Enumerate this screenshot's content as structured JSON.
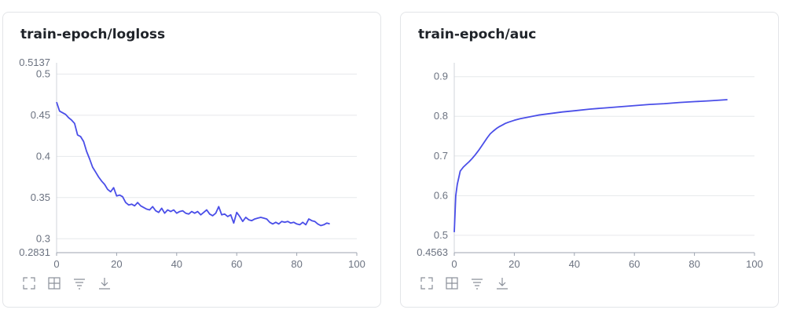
{
  "cards": [
    {
      "title": "train-epoch/logloss",
      "icons": [
        "expand-icon",
        "fit-view-icon",
        "filter-icon",
        "download-icon"
      ]
    },
    {
      "title": "train-epoch/auc",
      "icons": [
        "expand-icon",
        "fit-view-icon",
        "filter-icon",
        "download-icon"
      ]
    }
  ],
  "chart_data": [
    {
      "type": "line",
      "title": "train-epoch/logloss",
      "xlabel": "",
      "ylabel": "",
      "xlim": [
        0,
        100
      ],
      "ylim": [
        0.2831,
        0.5137
      ],
      "xticks": [
        "0",
        "20",
        "40",
        "60",
        "80",
        "100"
      ],
      "yticks": [
        "0.3",
        "0.35",
        "0.4",
        "0.45",
        "0.5"
      ],
      "ytick_values": [
        0.3,
        0.35,
        0.4,
        0.45,
        0.5
      ],
      "ylim_labels": [
        "0.2831",
        "0.5137"
      ],
      "grid": true,
      "line_color": "#4a4ee8",
      "series": [
        {
          "x": [
            0,
            1,
            2,
            3,
            4,
            5,
            6,
            7,
            8,
            9,
            10,
            11,
            12,
            13,
            14,
            15,
            16,
            17,
            18,
            19,
            20,
            21,
            22,
            23,
            24,
            25,
            26,
            27,
            28,
            29,
            30,
            31,
            32,
            33,
            34,
            35,
            36,
            37,
            38,
            39,
            40,
            41,
            42,
            43,
            44,
            45,
            46,
            47,
            48,
            49,
            50,
            51,
            52,
            53,
            54,
            55,
            56,
            57,
            58,
            59,
            60,
            61,
            62,
            63,
            64,
            65,
            66,
            67,
            68,
            69,
            70,
            71,
            72,
            73,
            74,
            75,
            76,
            77,
            78,
            79,
            80,
            81,
            82,
            83,
            84,
            85,
            86,
            87,
            88,
            89,
            90,
            91
          ],
          "values": [
            0.466,
            0.455,
            0.453,
            0.451,
            0.447,
            0.444,
            0.44,
            0.426,
            0.424,
            0.418,
            0.406,
            0.397,
            0.387,
            0.381,
            0.375,
            0.37,
            0.366,
            0.36,
            0.357,
            0.362,
            0.352,
            0.353,
            0.351,
            0.344,
            0.341,
            0.342,
            0.34,
            0.344,
            0.34,
            0.338,
            0.336,
            0.335,
            0.339,
            0.334,
            0.332,
            0.337,
            0.331,
            0.335,
            0.333,
            0.335,
            0.331,
            0.333,
            0.334,
            0.331,
            0.33,
            0.333,
            0.331,
            0.333,
            0.329,
            0.332,
            0.335,
            0.33,
            0.328,
            0.331,
            0.339,
            0.329,
            0.33,
            0.327,
            0.329,
            0.319,
            0.332,
            0.327,
            0.321,
            0.326,
            0.323,
            0.322,
            0.324,
            0.325,
            0.326,
            0.325,
            0.324,
            0.32,
            0.318,
            0.32,
            0.318,
            0.321,
            0.32,
            0.321,
            0.319,
            0.32,
            0.318,
            0.317,
            0.32,
            0.317,
            0.324,
            0.322,
            0.321,
            0.318,
            0.316,
            0.317,
            0.319,
            0.318
          ]
        }
      ]
    },
    {
      "type": "line",
      "title": "train-epoch/auc",
      "xlabel": "",
      "ylabel": "",
      "xlim": [
        0,
        100
      ],
      "ylim": [
        0.4563,
        0.935
      ],
      "xticks": [
        "0",
        "20",
        "40",
        "60",
        "80",
        "100"
      ],
      "yticks": [
        "0.5",
        "0.6",
        "0.7",
        "0.8",
        "0.9"
      ],
      "ytick_values": [
        0.5,
        0.6,
        0.7,
        0.8,
        0.9
      ],
      "ylim_labels": [
        "0.4563"
      ],
      "grid": true,
      "line_color": "#4a4ee8",
      "series": [
        {
          "x": [
            0,
            0.5,
            1,
            2,
            3,
            4,
            5,
            6,
            7,
            8,
            9,
            10,
            11,
            12,
            13,
            14,
            15,
            16,
            17,
            18,
            20,
            22,
            24,
            26,
            28,
            30,
            33,
            36,
            40,
            45,
            50,
            55,
            60,
            65,
            70,
            75,
            80,
            85,
            91
          ],
          "values": [
            0.508,
            0.6,
            0.628,
            0.662,
            0.672,
            0.679,
            0.686,
            0.694,
            0.703,
            0.713,
            0.724,
            0.735,
            0.746,
            0.756,
            0.763,
            0.769,
            0.774,
            0.778,
            0.782,
            0.785,
            0.79,
            0.794,
            0.797,
            0.8,
            0.803,
            0.805,
            0.808,
            0.811,
            0.814,
            0.818,
            0.821,
            0.824,
            0.827,
            0.83,
            0.832,
            0.835,
            0.837,
            0.839,
            0.842
          ]
        }
      ]
    }
  ]
}
